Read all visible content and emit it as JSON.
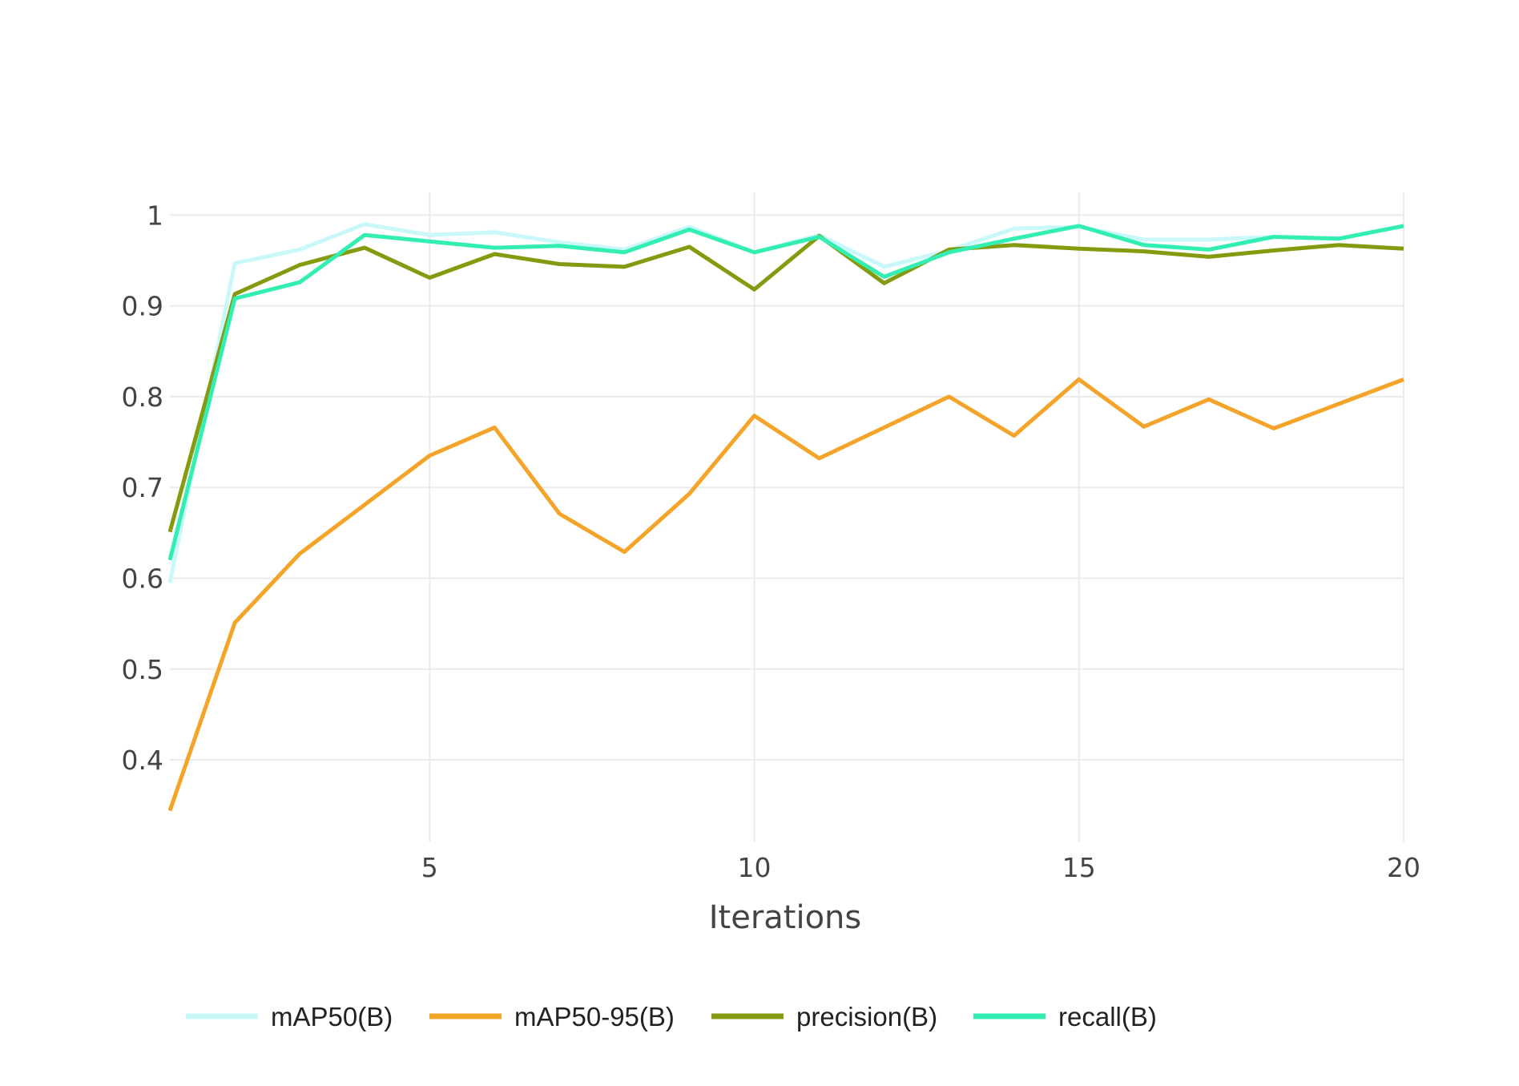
{
  "chart_data": {
    "type": "line",
    "title": "",
    "xlabel": "Iterations",
    "ylabel": "",
    "x": [
      1,
      2,
      3,
      4,
      5,
      6,
      7,
      8,
      9,
      10,
      11,
      12,
      13,
      14,
      15,
      16,
      17,
      18,
      19,
      20
    ],
    "xlim": [
      1,
      20
    ],
    "ylim": [
      0.31,
      1.025
    ],
    "x_ticks": [
      5,
      10,
      15,
      20
    ],
    "x_tick_labels": [
      "5",
      "10",
      "15",
      "20"
    ],
    "y_ticks": [
      0.4,
      0.5,
      0.6,
      0.7,
      0.8,
      0.9,
      1
    ],
    "y_tick_labels": [
      "0.4",
      "0.5",
      "0.6",
      "0.7",
      "0.8",
      "0.9",
      "1"
    ],
    "grid": true,
    "legend_position": "bottom",
    "series": [
      {
        "name": "mAP50(B)",
        "color": "#c8f8fa",
        "values": [
          0.595,
          0.947,
          0.962,
          0.99,
          0.978,
          0.981,
          0.97,
          0.962,
          0.987,
          0.959,
          0.978,
          0.943,
          0.961,
          0.985,
          0.987,
          0.973,
          0.973,
          0.976,
          0.974,
          0.988
        ]
      },
      {
        "name": "mAP50-95(B)",
        "color": "#f5a42a",
        "values": [
          0.344,
          0.551,
          0.627,
          0.681,
          0.735,
          0.766,
          0.671,
          0.629,
          0.693,
          0.779,
          0.732,
          0.766,
          0.8,
          0.757,
          0.819,
          0.767,
          0.797,
          0.765,
          0.792,
          0.819
        ]
      },
      {
        "name": "precision(B)",
        "color": "#859a0e",
        "values": [
          0.651,
          0.913,
          0.945,
          0.964,
          0.931,
          0.957,
          0.946,
          0.943,
          0.965,
          0.918,
          0.977,
          0.925,
          0.962,
          0.967,
          0.963,
          0.96,
          0.954,
          0.961,
          0.967,
          0.963
        ]
      },
      {
        "name": "recall(B)",
        "color": "#33eeb2",
        "values": [
          0.62,
          0.908,
          0.926,
          0.978,
          0.971,
          0.964,
          0.966,
          0.959,
          0.984,
          0.959,
          0.976,
          0.932,
          0.959,
          0.974,
          0.988,
          0.967,
          0.962,
          0.976,
          0.974,
          0.988
        ]
      }
    ]
  }
}
